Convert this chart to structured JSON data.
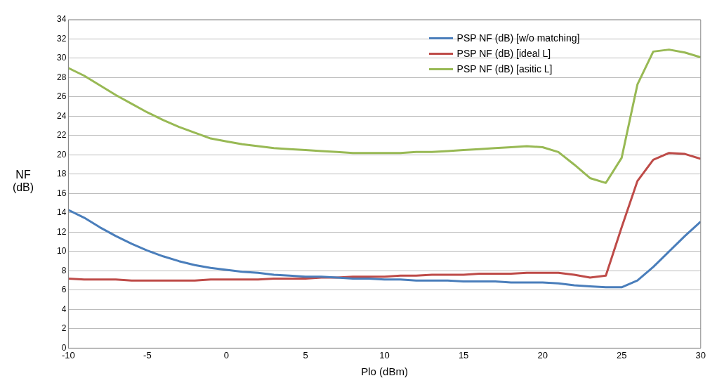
{
  "chart_data": {
    "type": "line",
    "xlabel": "Plo (dBm)",
    "ylabel": "NF (dB)",
    "x": [
      -10,
      -9,
      -8,
      -7,
      -6,
      -5,
      -4,
      -3,
      -2,
      -1,
      0,
      1,
      2,
      3,
      4,
      5,
      6,
      7,
      8,
      9,
      10,
      11,
      12,
      13,
      14,
      15,
      16,
      17,
      18,
      19,
      20,
      21,
      22,
      23,
      24,
      25,
      26,
      27,
      28,
      29,
      30
    ],
    "series": [
      {
        "name": "PSP NF (dB) [w/o matching]",
        "color": "#4a7ebb",
        "values": [
          14.3,
          13.5,
          12.5,
          11.6,
          10.8,
          10.1,
          9.5,
          9.0,
          8.6,
          8.3,
          8.1,
          7.9,
          7.8,
          7.6,
          7.5,
          7.4,
          7.4,
          7.3,
          7.2,
          7.2,
          7.1,
          7.1,
          7.0,
          7.0,
          7.0,
          6.9,
          6.9,
          6.9,
          6.8,
          6.8,
          6.8,
          6.7,
          6.5,
          6.4,
          6.3,
          6.3,
          7.0,
          8.4,
          10.0,
          11.6,
          13.1
        ]
      },
      {
        "name": "PSP NF (dB) [ideal L]",
        "color": "#be4b48",
        "values": [
          7.2,
          7.1,
          7.1,
          7.1,
          7.0,
          7.0,
          7.0,
          7.0,
          7.0,
          7.1,
          7.1,
          7.1,
          7.1,
          7.2,
          7.2,
          7.2,
          7.3,
          7.3,
          7.4,
          7.4,
          7.4,
          7.5,
          7.5,
          7.6,
          7.6,
          7.6,
          7.7,
          7.7,
          7.7,
          7.8,
          7.8,
          7.8,
          7.6,
          7.3,
          7.5,
          12.5,
          17.3,
          19.5,
          20.2,
          20.1,
          19.6
        ]
      },
      {
        "name": "PSP NF (dB) [asitic L]",
        "color": "#98b954",
        "values": [
          29.0,
          28.2,
          27.2,
          26.2,
          25.3,
          24.4,
          23.6,
          22.9,
          22.3,
          21.7,
          21.4,
          21.1,
          20.9,
          20.7,
          20.6,
          20.5,
          20.4,
          20.3,
          20.2,
          20.2,
          20.2,
          20.2,
          20.3,
          20.3,
          20.4,
          20.5,
          20.6,
          20.7,
          20.8,
          20.9,
          20.8,
          20.3,
          19.0,
          17.6,
          17.1,
          19.7,
          27.3,
          30.7,
          30.9,
          30.6,
          30.1
        ]
      }
    ],
    "xlim": [
      -10,
      30
    ],
    "xticks": [
      -10,
      -5,
      0,
      5,
      10,
      15,
      20,
      25,
      30
    ],
    "ylim": [
      0,
      34
    ],
    "yticks": [
      0,
      2,
      4,
      6,
      8,
      10,
      12,
      14,
      16,
      18,
      20,
      22,
      24,
      26,
      28,
      30,
      32,
      34
    ],
    "grid": "y",
    "legend": "top right",
    "marker": "none",
    "line_style": "solid"
  }
}
